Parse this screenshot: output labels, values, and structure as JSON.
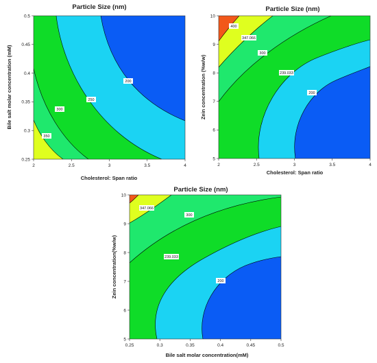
{
  "palette": {
    "red": "#f2581a",
    "yellow": "#dfff1f",
    "green_light": "#1fe86d",
    "green": "#0fdc28",
    "cyan": "#1bd3f3",
    "blue": "#0a5cf5",
    "contour_line": "#000000"
  },
  "chart_data": [
    {
      "type": "contour",
      "title": "Particle Size (nm)",
      "xlabel": "Cholesterol: Span ratio",
      "ylabel": "Bile salt molar concentration (mM)",
      "xlim": [
        2,
        4
      ],
      "ylim": [
        0.25,
        0.5
      ],
      "x_ticks": [
        "2",
        "2.5",
        "3",
        "3.5",
        "4"
      ],
      "y_ticks": [
        "0.25",
        "0.3",
        "0.35",
        "0.4",
        "0.45",
        "0.5"
      ],
      "contour_levels": [
        "350",
        "300",
        "250",
        "200"
      ],
      "fill_regions": [
        "yellow",
        "green_light",
        "green",
        "cyan",
        "blue"
      ]
    },
    {
      "type": "contour",
      "title": "Particle Size (nm)",
      "xlabel": "Cholesterol: Span ratio",
      "ylabel": "Zein concentration (%w/w)",
      "xlim": [
        2,
        4
      ],
      "ylim": [
        5,
        10
      ],
      "x_ticks": [
        "2",
        "2.5",
        "3",
        "3.5",
        "4"
      ],
      "y_ticks": [
        "5",
        "6",
        "7",
        "8",
        "9",
        "10"
      ],
      "contour_levels": [
        "400",
        "347.066",
        "300",
        "239.033",
        "200"
      ],
      "fill_regions": [
        "red",
        "yellow",
        "green_light",
        "green",
        "cyan",
        "blue"
      ]
    },
    {
      "type": "contour",
      "title": "Particle Size (nm)",
      "xlabel": "Bile salt molar concentration(mM)",
      "ylabel": "Zein concentration(%w/w)",
      "xlim": [
        0.25,
        0.5
      ],
      "ylim": [
        5,
        10
      ],
      "x_ticks": [
        "0.25",
        "0.3",
        "0.35",
        "0.4",
        "0.45",
        "0.5"
      ],
      "y_ticks": [
        "5",
        "6",
        "7",
        "8",
        "9",
        "10"
      ],
      "contour_levels": [
        "347.066",
        "300",
        "239.033",
        "200"
      ],
      "fill_regions": [
        "red",
        "yellow",
        "green_light",
        "green",
        "cyan",
        "blue"
      ]
    }
  ]
}
